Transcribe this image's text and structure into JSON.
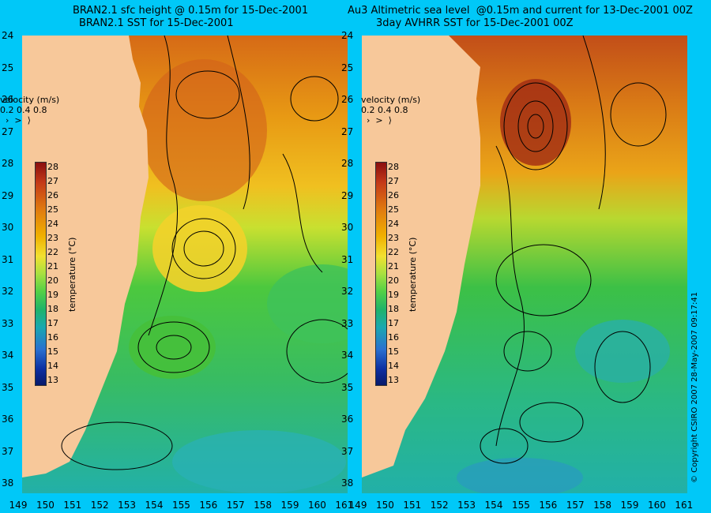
{
  "left_panel": {
    "title_line1": "BRAN2.1 sfc height @ 0.15m for 15-Dec-2001",
    "title_line2": "BRAN2.1 SST for 15-Dec-2001"
  },
  "right_panel": {
    "title_line1": "Au3 Altimetric sea level  @0.15m and current for 13-Dec-2001 00Z",
    "title_line2": "3day AVHRR SST for 15-Dec-2001 00Z"
  },
  "velocity_legend": {
    "title": "velocity (m/s)",
    "values": "0.2 0.4 0.8"
  },
  "colorbar": {
    "label": "temperature (°C)",
    "ticks": [
      "28",
      "27",
      "26",
      "25",
      "24",
      "23",
      "22",
      "21",
      "20",
      "19",
      "18",
      "17",
      "16",
      "15",
      "14",
      "13"
    ]
  },
  "lat_ticks": [
    "24",
    "25",
    "26",
    "27",
    "28",
    "29",
    "30",
    "31",
    "32",
    "33",
    "34",
    "35",
    "36",
    "37",
    "38"
  ],
  "lon_ticks": [
    "149",
    "150",
    "151",
    "152",
    "153",
    "154",
    "155",
    "156",
    "157",
    "158",
    "159",
    "160",
    "161"
  ],
  "copyright": "© Copyright CSIRO 2007   28-May-2007 09:17:41",
  "colors": {
    "background": "#00c8f8",
    "land": "#f7c89a",
    "warm": "#d9731a",
    "mid": "#e8c020",
    "cool": "#36c24a",
    "cold": "#2ab0a0"
  }
}
